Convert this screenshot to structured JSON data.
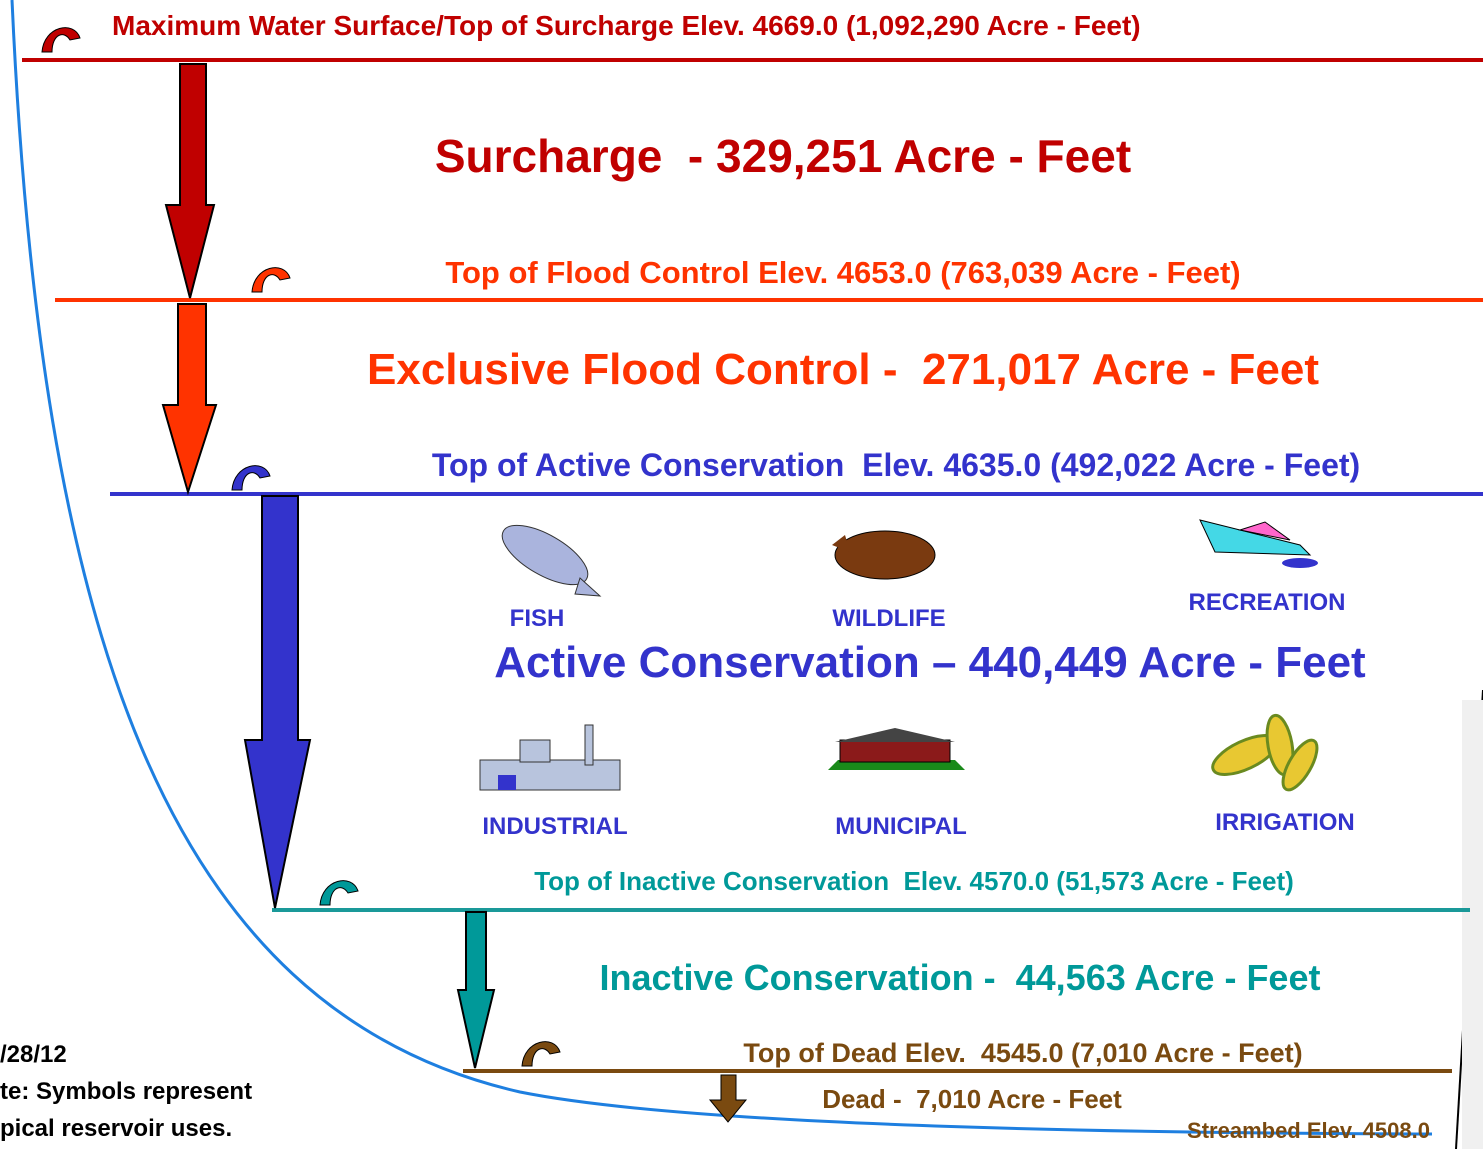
{
  "levels": [
    {
      "label": "Maximum Water Surface/Top of Surcharge Elev. 4669.0 (1,092,290 Acre - Feet)"
    },
    {
      "label": "Top of Flood Control Elev. 4653.0 (763,039 Acre - Feet)"
    },
    {
      "label": "Top of Active Conservation  Elev. 4635.0 (492,022 Acre - Feet)"
    },
    {
      "label": "Top of Inactive Conservation  Elev. 4570.0 (51,573 Acre - Feet)"
    },
    {
      "label": "Top of Dead Elev.  4545.0 (7,010 Acre - Feet)"
    }
  ],
  "zones": [
    {
      "label": "Surcharge  - 329,251 Acre - Feet"
    },
    {
      "label": "Exclusive Flood Control -  271,017 Acre - Feet"
    },
    {
      "label": "Active Conservation – 440,449 Acre - Feet"
    },
    {
      "label": "Inactive Conservation -  44,563 Acre - Feet"
    },
    {
      "label": "Dead -  7,010 Acre - Feet"
    }
  ],
  "uses": [
    "FISH",
    "WILDLIFE",
    "RECREATION",
    "INDUSTRIAL",
    "MUNICIPAL",
    "IRRIGATION"
  ],
  "streambed": "Streambed Elev. 4508.0",
  "notes": [
    "/28/12",
    "te: Symbols represent",
    "pical reservoir uses."
  ]
}
